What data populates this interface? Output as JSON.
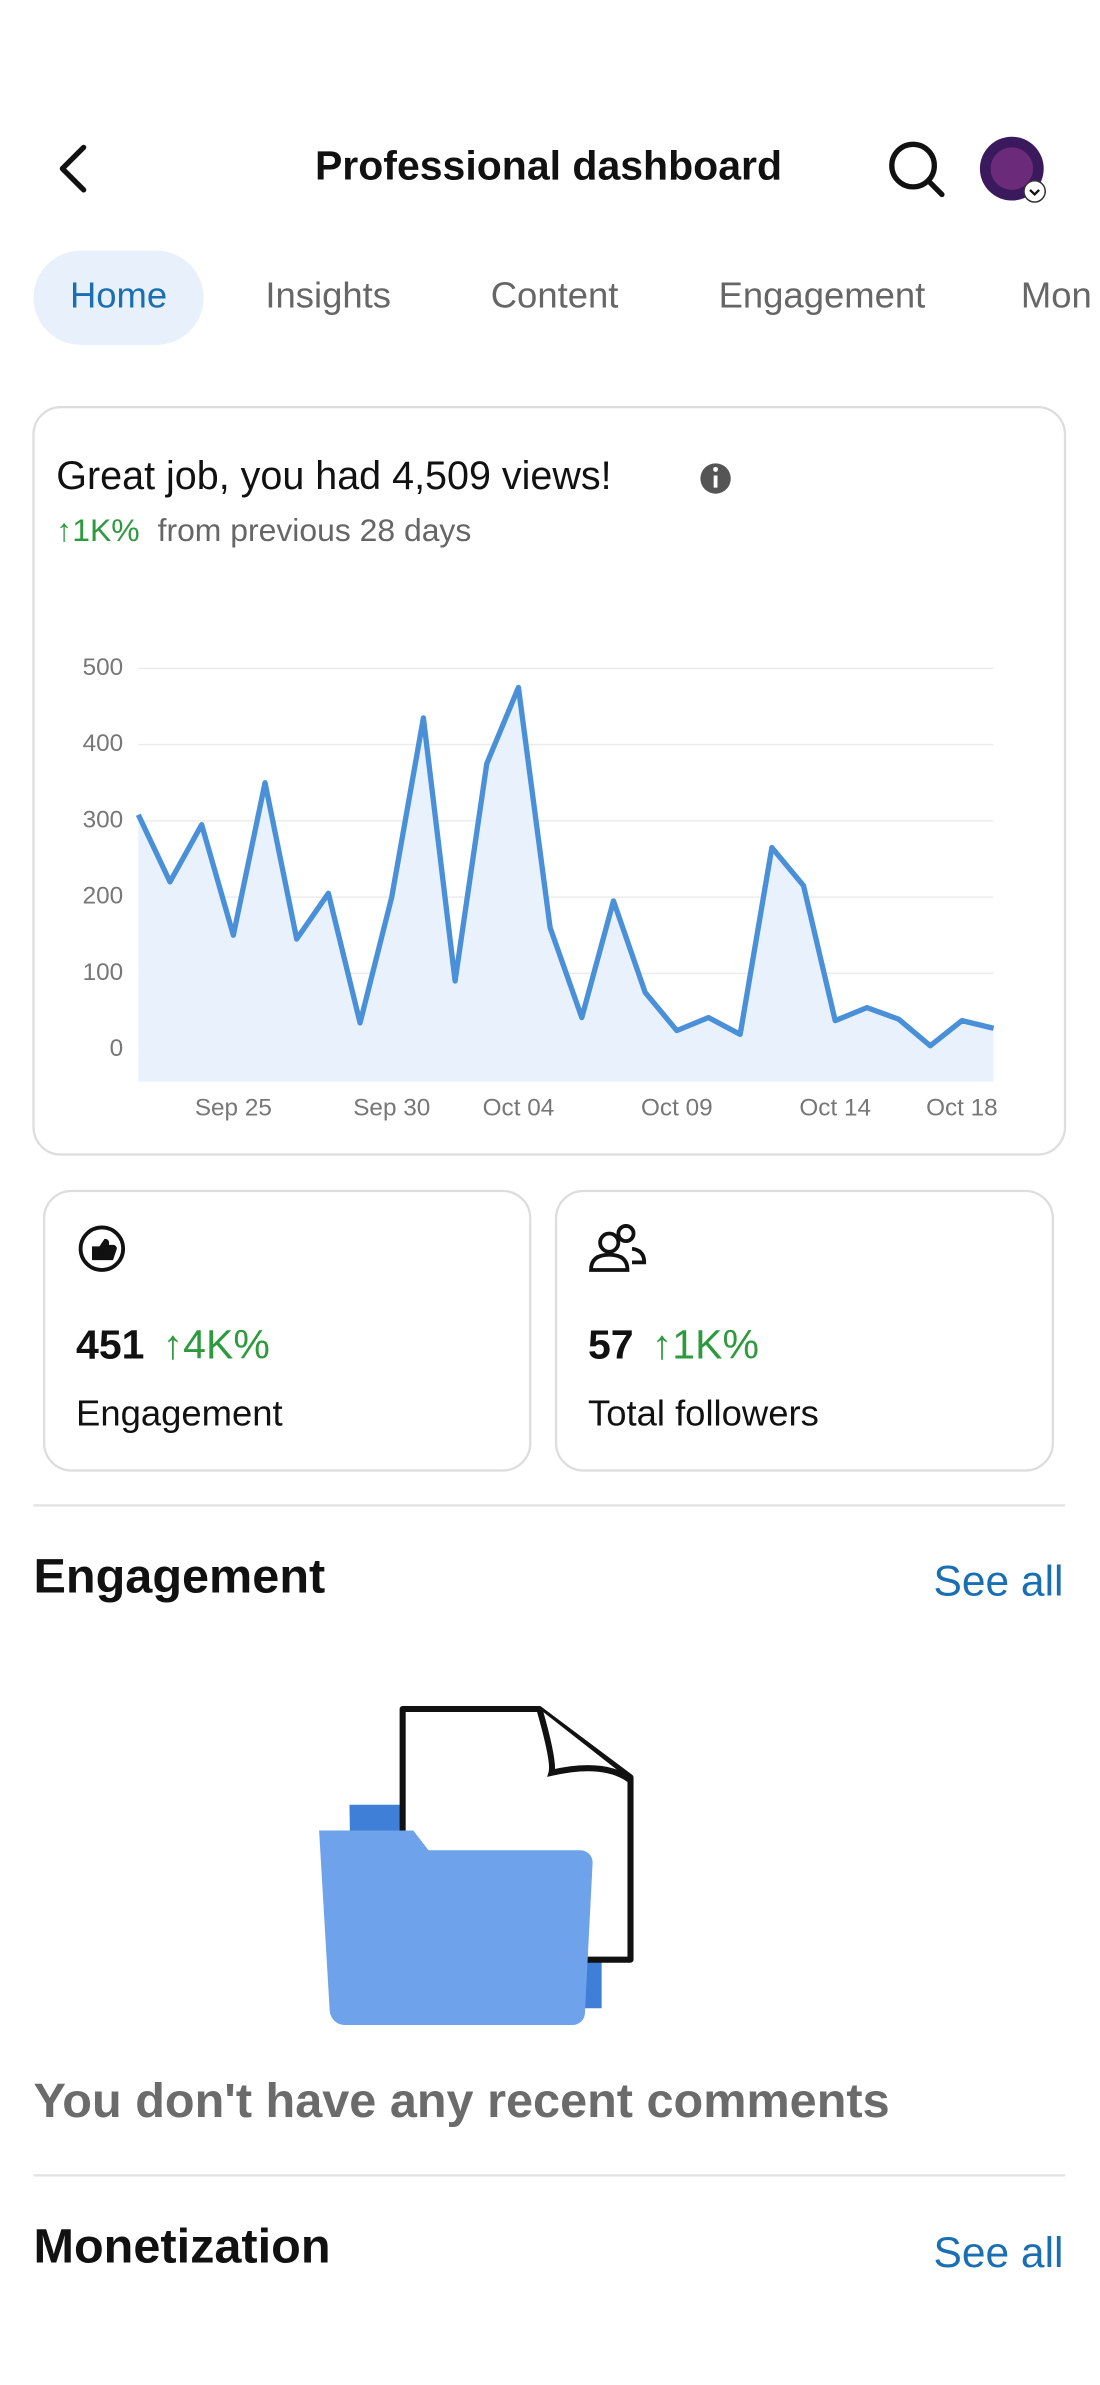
{
  "header": {
    "title": "Professional dashboard"
  },
  "tabs": [
    "Home",
    "Insights",
    "Content",
    "Engagement",
    "Mon"
  ],
  "summary": {
    "headline": "Great job, you had 4,509 views!",
    "change": "↑1K%",
    "change_suffix": "from previous 28 days"
  },
  "chart_data": {
    "type": "line",
    "categories": [
      null,
      null,
      null,
      "Sep 25",
      null,
      null,
      null,
      null,
      "Sep 30",
      null,
      null,
      null,
      "Oct 04",
      null,
      null,
      null,
      null,
      "Oct 09",
      null,
      null,
      null,
      null,
      "Oct 14",
      null,
      null,
      null,
      "Oct 18",
      null
    ],
    "values": [
      308,
      220,
      295,
      150,
      350,
      145,
      205,
      35,
      200,
      435,
      90,
      375,
      475,
      160,
      42,
      195,
      75,
      25,
      42,
      20,
      265,
      215,
      38,
      55,
      40,
      5,
      38,
      28
    ],
    "color": "#4a90d9",
    "fill": "#e9f2fc",
    "ylim": [
      -42,
      500
    ],
    "yticks": [
      0,
      100,
      200,
      300,
      400,
      500
    ],
    "grid": true
  },
  "stats": [
    {
      "value": "451",
      "change": "↑4K%",
      "label": "Engagement"
    },
    {
      "value": "57",
      "change": "↑1K%",
      "label": "Total followers"
    }
  ],
  "engagement": {
    "title": "Engagement",
    "see_all": "See all",
    "empty_message": "You don't have any recent comments"
  },
  "monetization": {
    "title": "Monetization",
    "see_all": "See all"
  }
}
